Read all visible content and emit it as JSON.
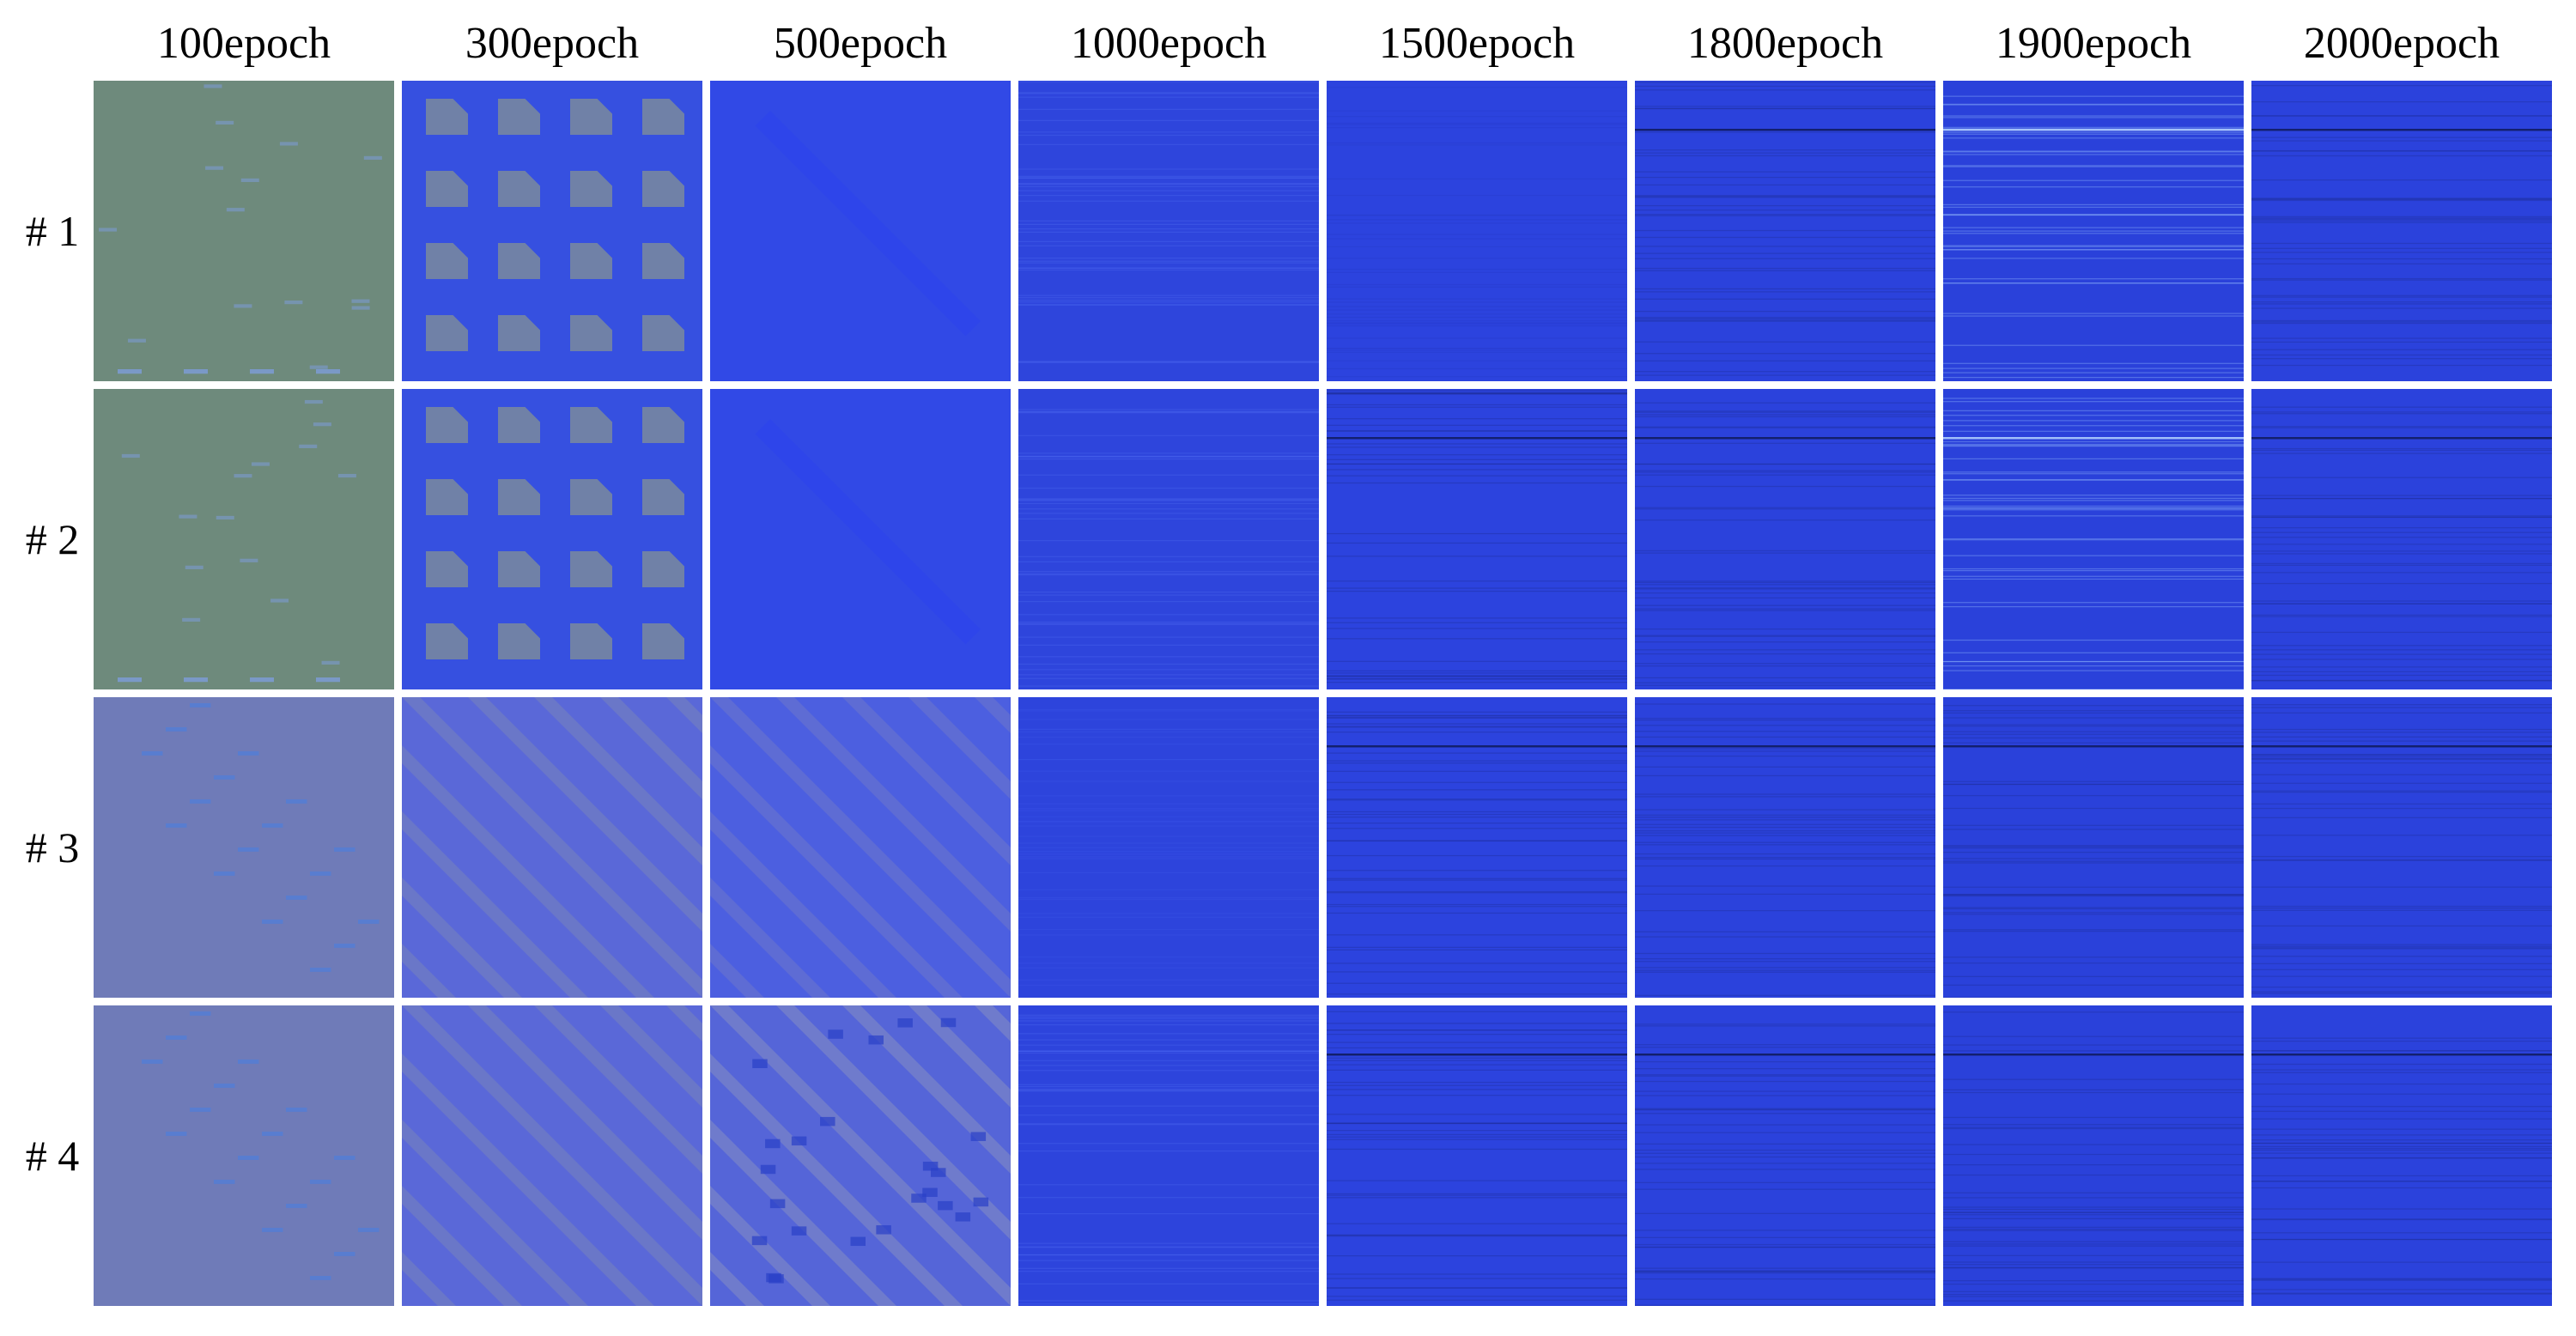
{
  "columns": [
    "100epoch",
    "300epoch",
    "500epoch",
    "1000epoch",
    "1500epoch",
    "1800epoch",
    "1900epoch",
    "2000epoch"
  ],
  "rows": [
    "# 1",
    "# 2",
    "# 3",
    "# 4"
  ],
  "tiles": [
    [
      {
        "base": "#6e8a7c",
        "pattern": "dashes-sparse",
        "accent": "#7d9cd9",
        "line": ""
      },
      {
        "base": "#3650e0",
        "pattern": "blobs",
        "accent": "#7a8a9c",
        "line": ""
      },
      {
        "base": "#3149e6",
        "pattern": "smooth",
        "accent": "#2a40f0",
        "line": ""
      },
      {
        "base": "#2e45dc",
        "pattern": "noise",
        "accent": "#4d6af0",
        "line": ""
      },
      {
        "base": "#2c43de",
        "pattern": "noise",
        "accent": "#253ac8",
        "line": ""
      },
      {
        "base": "#2b42dc",
        "pattern": "noise",
        "accent": "#1c2c90",
        "line": "#0f1a5a"
      },
      {
        "base": "#2a41da",
        "pattern": "noise",
        "accent": "#9fc6ff",
        "line": "#b6d6ff"
      },
      {
        "base": "#2b42dc",
        "pattern": "noise",
        "accent": "#1c2c90",
        "line": "#0f1a5a"
      }
    ],
    [
      {
        "base": "#6e8a7c",
        "pattern": "dashes-sparse",
        "accent": "#7d9cd9",
        "line": ""
      },
      {
        "base": "#3650e0",
        "pattern": "blobs",
        "accent": "#7a8a9c",
        "line": ""
      },
      {
        "base": "#3149e6",
        "pattern": "smooth",
        "accent": "#2a40f0",
        "line": ""
      },
      {
        "base": "#2e45dc",
        "pattern": "noise",
        "accent": "#4d6af0",
        "line": ""
      },
      {
        "base": "#2c43de",
        "pattern": "noise",
        "accent": "#1c2c90",
        "line": "#0f1a5a"
      },
      {
        "base": "#2b42dc",
        "pattern": "noise",
        "accent": "#1c2c90",
        "line": "#0f1a5a"
      },
      {
        "base": "#2a41da",
        "pattern": "noise",
        "accent": "#9fc6ff",
        "line": "#b6d6ff"
      },
      {
        "base": "#2b42dc",
        "pattern": "noise",
        "accent": "#1c2c90",
        "line": "#0f1a5a"
      }
    ],
    [
      {
        "base": "#6f7bb8",
        "pattern": "dashes-diagonal",
        "accent": "#4a7ee0",
        "line": ""
      },
      {
        "base": "#5a68d8",
        "pattern": "diagonal-bands",
        "accent": "#7a86b8",
        "line": ""
      },
      {
        "base": "#4c5fe0",
        "pattern": "diagonal-bands",
        "accent": "#6f7ac8",
        "line": ""
      },
      {
        "base": "#2d44dc",
        "pattern": "noise",
        "accent": "#3b55e8",
        "line": ""
      },
      {
        "base": "#2c43de",
        "pattern": "noise",
        "accent": "#1c2c90",
        "line": "#0f1a5a"
      },
      {
        "base": "#2b42dc",
        "pattern": "noise",
        "accent": "#1c2c90",
        "line": "#0f1a5a"
      },
      {
        "base": "#2a41da",
        "pattern": "noise",
        "accent": "#1c2c90",
        "line": "#0f1a5a"
      },
      {
        "base": "#2b42dc",
        "pattern": "noise",
        "accent": "#1c2c90",
        "line": "#0f1a5a"
      }
    ],
    [
      {
        "base": "#6f7bb8",
        "pattern": "dashes-diagonal",
        "accent": "#4a7ee0",
        "line": ""
      },
      {
        "base": "#5a68d8",
        "pattern": "diagonal-bands",
        "accent": "#7a86b8",
        "line": ""
      },
      {
        "base": "#5565d8",
        "pattern": "checker-diagonal",
        "accent": "#8a92c0",
        "line": ""
      },
      {
        "base": "#2d44dc",
        "pattern": "noise",
        "accent": "#4d6af0",
        "line": ""
      },
      {
        "base": "#2c43de",
        "pattern": "noise",
        "accent": "#1c2c90",
        "line": "#0f1a5a"
      },
      {
        "base": "#2b42dc",
        "pattern": "noise",
        "accent": "#1c2c90",
        "line": "#0f1a5a"
      },
      {
        "base": "#2a41da",
        "pattern": "noise",
        "accent": "#1c2c90",
        "line": "#0f1a5a"
      },
      {
        "base": "#2b42dc",
        "pattern": "noise",
        "accent": "#1c2c90",
        "line": "#0f1a5a"
      }
    ]
  ]
}
